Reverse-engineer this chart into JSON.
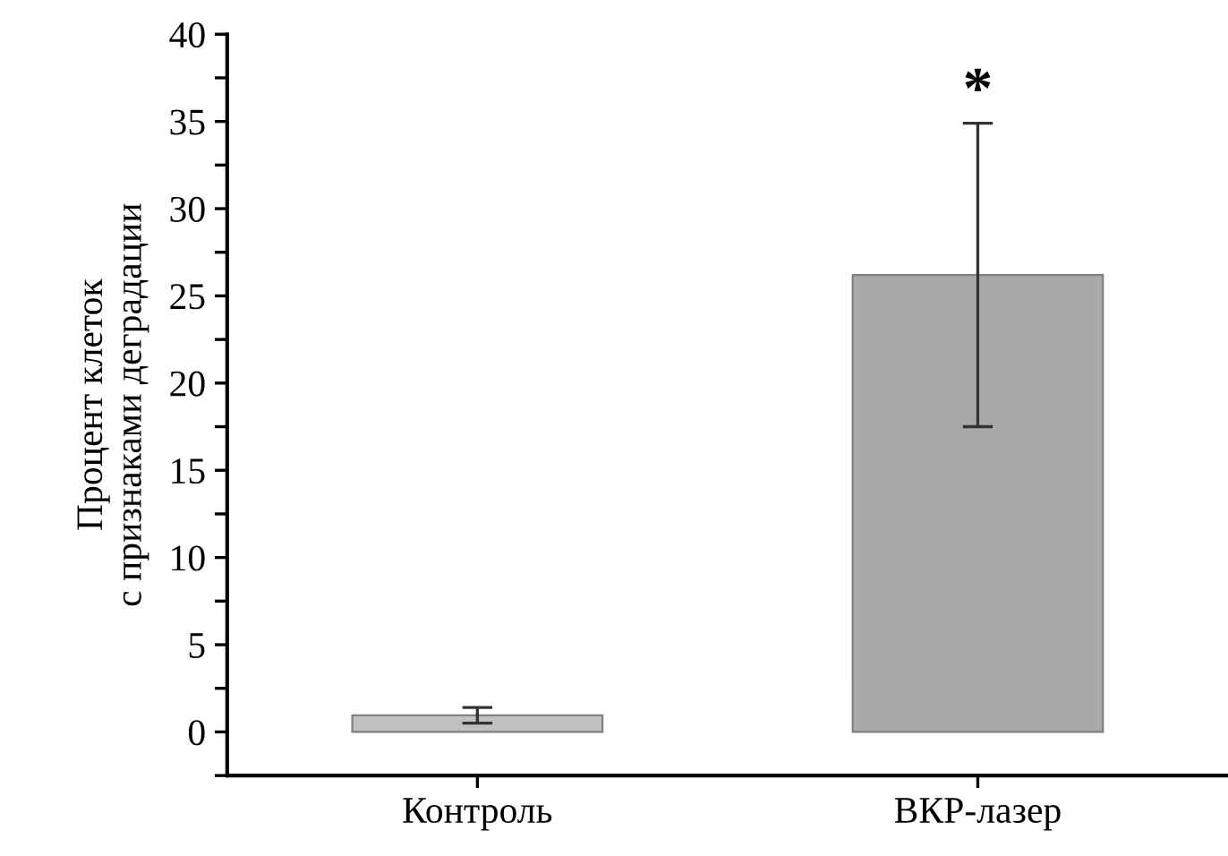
{
  "chart_data": {
    "type": "bar",
    "ylabel": "Процент клеток\nс признаками деградации",
    "categories": [
      "Контроль",
      "ВКР-лазер"
    ],
    "values": [
      0.95,
      26.2
    ],
    "errors": [
      0.45,
      8.7
    ],
    "colors": [
      "#c0c0c0",
      "#a9a9a9"
    ],
    "ylim": [
      -2.5,
      40
    ],
    "yticks": [
      {
        "value": -2.5,
        "label": null
      },
      0,
      {
        "value": 2.5,
        "label": null
      },
      5,
      {
        "value": 7.5,
        "label": null
      },
      10,
      {
        "value": 12.5,
        "label": null
      },
      15,
      {
        "value": 17.5,
        "label": null
      },
      20,
      {
        "value": 22.5,
        "label": null
      },
      25,
      {
        "value": 27.5,
        "label": null
      },
      30,
      {
        "value": 32.5,
        "label": null
      },
      35,
      {
        "value": 37.5,
        "label": null
      },
      40
    ],
    "annotations": [
      {
        "text": "*",
        "x": "ВКР-лазер",
        "y": 34.9
      }
    ],
    "grid": false,
    "legend": false
  }
}
